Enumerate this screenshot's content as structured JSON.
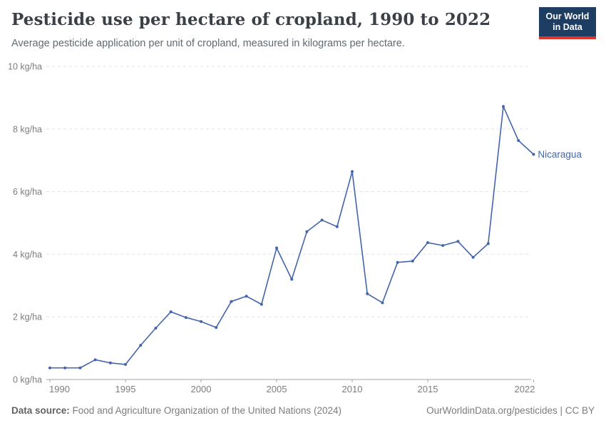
{
  "header": {
    "title": "Pesticide use per hectare of cropland, 1990 to 2022",
    "subtitle": "Average pesticide application per unit of cropland, measured in kilograms per hectare.",
    "logo": {
      "line1": "Our World",
      "line2": "in Data"
    }
  },
  "chart_data": {
    "type": "line",
    "title": "Pesticide use per hectare of cropland, 1990 to 2022",
    "xlabel": "",
    "ylabel": "kg/ha",
    "xlim": [
      1990,
      2022
    ],
    "ylim": [
      0,
      10
    ],
    "grid": "horizontal-dashed",
    "legend": "line-end-label",
    "x_ticks": [
      1990,
      1995,
      2000,
      2005,
      2010,
      2015,
      2022
    ],
    "y_ticks": [
      0,
      2,
      4,
      6,
      8,
      10
    ],
    "y_tick_suffix": " kg/ha",
    "x": [
      1990,
      1991,
      1992,
      1993,
      1994,
      1995,
      1996,
      1997,
      1998,
      1999,
      2000,
      2001,
      2002,
      2003,
      2004,
      2005,
      2006,
      2007,
      2008,
      2009,
      2010,
      2011,
      2012,
      2013,
      2014,
      2015,
      2016,
      2017,
      2018,
      2019,
      2020,
      2021,
      2022
    ],
    "series": [
      {
        "name": "Nicaragua",
        "color": "#4365a9",
        "values": [
          0.37,
          0.37,
          0.37,
          0.63,
          0.53,
          0.48,
          1.09,
          1.64,
          2.16,
          1.98,
          1.85,
          1.66,
          2.49,
          2.66,
          2.4,
          4.2,
          3.2,
          4.72,
          5.09,
          4.88,
          6.64,
          2.74,
          2.45,
          3.74,
          3.78,
          4.37,
          4.28,
          4.41,
          3.9,
          4.34,
          8.72,
          7.63,
          7.19
        ]
      }
    ]
  },
  "footer": {
    "source_label": "Data source:",
    "source_text": "Food and Agriculture Organization of the United Nations (2024)",
    "link": "OurWorldinData.org/pesticides",
    "separator": " | ",
    "license": "CC BY"
  },
  "colors": {
    "accent_line": "#4365a9",
    "gridline": "#e3e3e3",
    "axis": "#a3a3a3",
    "tick_label": "#7d7d7d",
    "logo_bg": "#1d3d63",
    "logo_stripe": "#dc352d",
    "title": "#3b3f46",
    "subtitle": "#616971"
  }
}
